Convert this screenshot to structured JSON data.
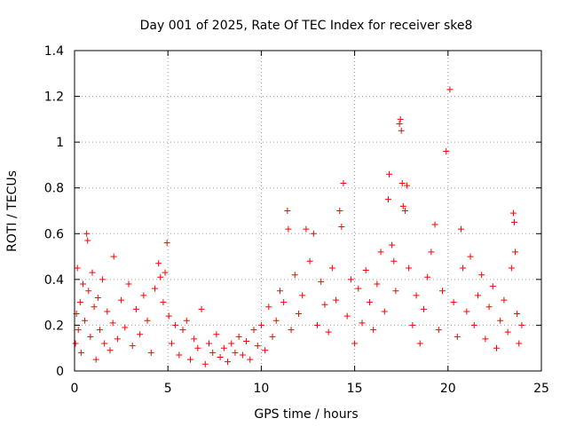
{
  "chart_data": {
    "type": "scatter",
    "title": "Day 001 of 2025, Rate Of TEC Index for receiver ske8",
    "xlabel": "GPS time / hours",
    "ylabel": "ROTI / TECUs",
    "xlim": [
      0,
      25
    ],
    "ylim": [
      0,
      1.4
    ],
    "x_ticks": [
      0,
      5,
      10,
      15,
      20,
      25
    ],
    "x_tick_labels": [
      "0",
      "5",
      "10",
      "15",
      "20",
      "25"
    ],
    "y_ticks": [
      0,
      0.2,
      0.4,
      0.6,
      0.8,
      1.0,
      1.2,
      1.4
    ],
    "y_tick_labels": [
      "0",
      "0.2",
      "0.4",
      "0.6",
      "0.8",
      "1",
      "1.2",
      "1.4"
    ],
    "grid": true,
    "marker": "plus",
    "marker_color": "#ff0000",
    "series": [
      {
        "name": "ROTI",
        "points": [
          [
            0.05,
            0.12
          ],
          [
            0.1,
            0.25
          ],
          [
            0.15,
            0.45
          ],
          [
            0.2,
            0.18
          ],
          [
            0.3,
            0.3
          ],
          [
            0.35,
            0.08
          ],
          [
            0.45,
            0.38
          ],
          [
            0.55,
            0.22
          ],
          [
            0.65,
            0.6
          ],
          [
            0.7,
            0.57
          ],
          [
            0.75,
            0.35
          ],
          [
            0.85,
            0.15
          ],
          [
            0.95,
            0.43
          ],
          [
            1.05,
            0.28
          ],
          [
            1.15,
            0.05
          ],
          [
            1.25,
            0.32
          ],
          [
            1.35,
            0.18
          ],
          [
            1.5,
            0.4
          ],
          [
            1.6,
            0.12
          ],
          [
            1.75,
            0.26
          ],
          [
            1.9,
            0.09
          ],
          [
            2.05,
            0.21
          ],
          [
            2.1,
            0.5
          ],
          [
            2.3,
            0.14
          ],
          [
            2.5,
            0.31
          ],
          [
            2.7,
            0.19
          ],
          [
            2.9,
            0.38
          ],
          [
            3.1,
            0.11
          ],
          [
            3.3,
            0.27
          ],
          [
            3.5,
            0.16
          ],
          [
            3.7,
            0.33
          ],
          [
            3.9,
            0.22
          ],
          [
            4.1,
            0.08
          ],
          [
            4.3,
            0.36
          ],
          [
            4.5,
            0.47
          ],
          [
            4.6,
            0.41
          ],
          [
            4.75,
            0.3
          ],
          [
            4.85,
            0.43
          ],
          [
            4.95,
            0.56
          ],
          [
            5.05,
            0.24
          ],
          [
            5.2,
            0.12
          ],
          [
            5.4,
            0.2
          ],
          [
            5.6,
            0.07
          ],
          [
            5.8,
            0.18
          ],
          [
            6.0,
            0.22
          ],
          [
            6.2,
            0.05
          ],
          [
            6.4,
            0.14
          ],
          [
            6.6,
            0.1
          ],
          [
            6.8,
            0.27
          ],
          [
            7.0,
            0.03
          ],
          [
            7.2,
            0.12
          ],
          [
            7.4,
            0.08
          ],
          [
            7.6,
            0.16
          ],
          [
            7.8,
            0.06
          ],
          [
            8.0,
            0.1
          ],
          [
            8.2,
            0.04
          ],
          [
            8.4,
            0.12
          ],
          [
            8.6,
            0.08
          ],
          [
            8.8,
            0.15
          ],
          [
            9.0,
            0.07
          ],
          [
            9.2,
            0.13
          ],
          [
            9.4,
            0.05
          ],
          [
            9.6,
            0.18
          ],
          [
            9.8,
            0.11
          ],
          [
            10.0,
            0.2
          ],
          [
            10.2,
            0.09
          ],
          [
            10.4,
            0.28
          ],
          [
            10.6,
            0.15
          ],
          [
            10.8,
            0.22
          ],
          [
            11.0,
            0.35
          ],
          [
            11.2,
            0.3
          ],
          [
            11.4,
            0.7
          ],
          [
            11.45,
            0.62
          ],
          [
            11.6,
            0.18
          ],
          [
            11.8,
            0.42
          ],
          [
            12.0,
            0.25
          ],
          [
            12.2,
            0.33
          ],
          [
            12.4,
            0.62
          ],
          [
            12.6,
            0.48
          ],
          [
            12.8,
            0.6
          ],
          [
            13.0,
            0.2
          ],
          [
            13.2,
            0.39
          ],
          [
            13.4,
            0.29
          ],
          [
            13.6,
            0.17
          ],
          [
            13.8,
            0.45
          ],
          [
            14.0,
            0.31
          ],
          [
            14.2,
            0.7
          ],
          [
            14.3,
            0.63
          ],
          [
            14.4,
            0.82
          ],
          [
            14.6,
            0.24
          ],
          [
            14.8,
            0.4
          ],
          [
            15.0,
            0.12
          ],
          [
            15.2,
            0.36
          ],
          [
            15.4,
            0.21
          ],
          [
            15.6,
            0.44
          ],
          [
            15.8,
            0.3
          ],
          [
            16.0,
            0.18
          ],
          [
            16.2,
            0.38
          ],
          [
            16.4,
            0.52
          ],
          [
            16.6,
            0.26
          ],
          [
            16.8,
            0.75
          ],
          [
            16.85,
            0.86
          ],
          [
            17.0,
            0.55
          ],
          [
            17.1,
            0.48
          ],
          [
            17.2,
            0.35
          ],
          [
            17.4,
            1.08
          ],
          [
            17.45,
            1.1
          ],
          [
            17.5,
            1.05
          ],
          [
            17.55,
            0.82
          ],
          [
            17.6,
            0.72
          ],
          [
            17.7,
            0.7
          ],
          [
            17.8,
            0.81
          ],
          [
            17.9,
            0.45
          ],
          [
            18.1,
            0.2
          ],
          [
            18.3,
            0.33
          ],
          [
            18.5,
            0.12
          ],
          [
            18.7,
            0.27
          ],
          [
            18.9,
            0.41
          ],
          [
            19.1,
            0.52
          ],
          [
            19.3,
            0.64
          ],
          [
            19.5,
            0.18
          ],
          [
            19.7,
            0.35
          ],
          [
            19.9,
            0.96
          ],
          [
            20.1,
            1.23
          ],
          [
            20.3,
            0.3
          ],
          [
            20.5,
            0.15
          ],
          [
            20.7,
            0.62
          ],
          [
            20.8,
            0.45
          ],
          [
            21.0,
            0.26
          ],
          [
            21.2,
            0.5
          ],
          [
            21.4,
            0.2
          ],
          [
            21.6,
            0.33
          ],
          [
            21.8,
            0.42
          ],
          [
            22.0,
            0.14
          ],
          [
            22.2,
            0.28
          ],
          [
            22.4,
            0.37
          ],
          [
            22.6,
            0.1
          ],
          [
            22.8,
            0.22
          ],
          [
            23.0,
            0.31
          ],
          [
            23.2,
            0.17
          ],
          [
            23.4,
            0.45
          ],
          [
            23.5,
            0.69
          ],
          [
            23.55,
            0.65
          ],
          [
            23.6,
            0.52
          ],
          [
            23.7,
            0.25
          ],
          [
            23.8,
            0.12
          ],
          [
            23.95,
            0.2
          ]
        ]
      }
    ]
  }
}
